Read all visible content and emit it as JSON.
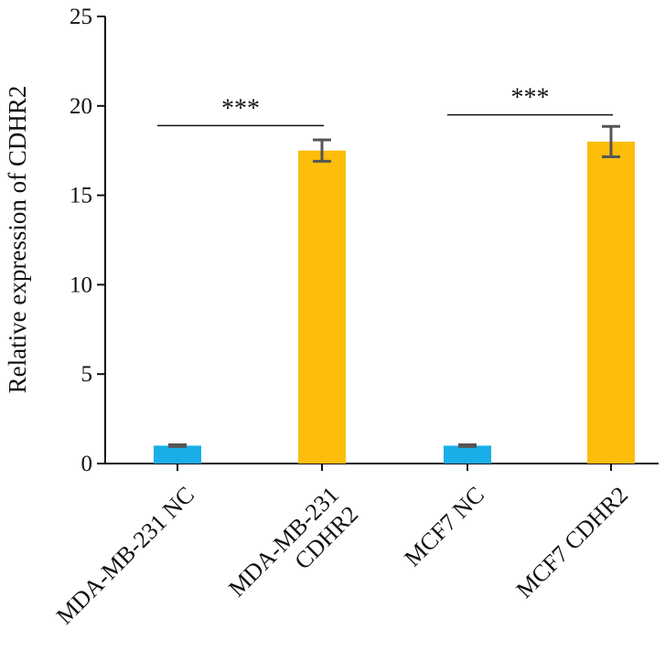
{
  "chart_data": {
    "type": "bar",
    "title": "",
    "xlabel": "",
    "ylabel": "Relative expression of CDHR2",
    "ylim": [
      0,
      25
    ],
    "yticks": [
      0,
      5,
      10,
      15,
      20,
      25
    ],
    "grid": false,
    "categories": [
      [
        "MDA-MB-231 NC"
      ],
      [
        "MDA-MB-231",
        "CDHR2"
      ],
      [
        "MCF7 NC"
      ],
      [
        "MCF7 CDHR2"
      ]
    ],
    "values": [
      1.0,
      17.5,
      1.0,
      18.0
    ],
    "errors": [
      0.05,
      0.6,
      0.05,
      0.85
    ],
    "colors": [
      "#1AAEE8",
      "#FDBD0B",
      "#1AAEE8",
      "#FDBD0B"
    ],
    "error_color": "#555555",
    "significance": [
      {
        "from": 0,
        "to": 1,
        "label": "***",
        "y": 18.9
      },
      {
        "from": 2,
        "to": 3,
        "label": "***",
        "y": 19.5
      }
    ]
  }
}
